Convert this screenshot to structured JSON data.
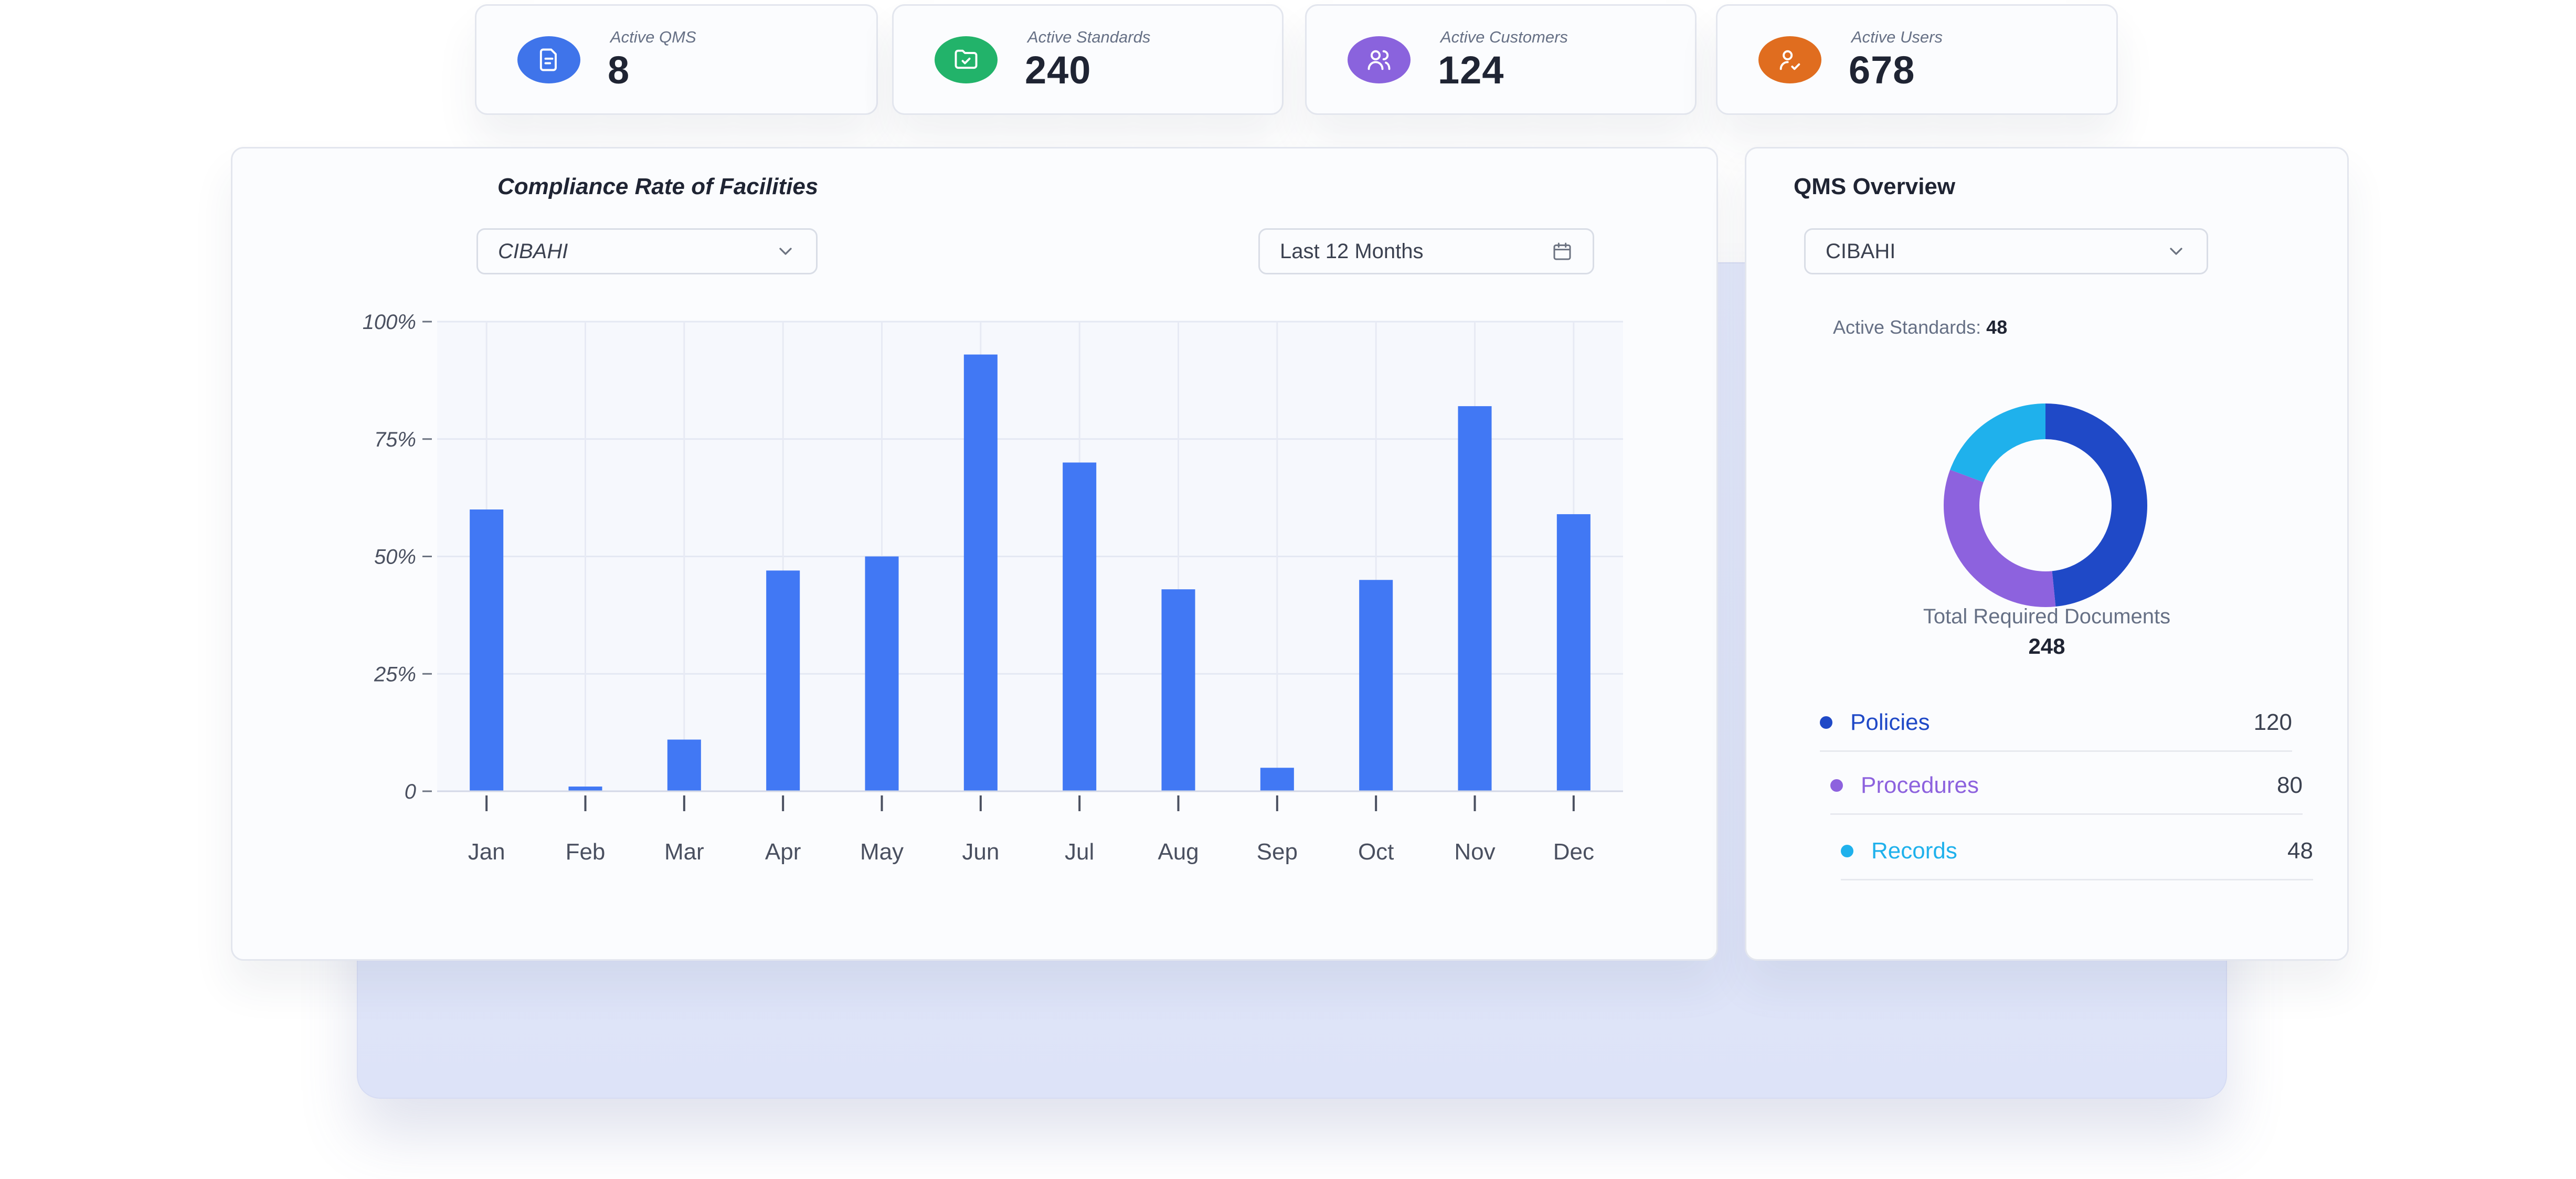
{
  "stats": [
    {
      "label": "Active QMS",
      "value": "8",
      "icon": "document-icon",
      "color": "#3f74ea"
    },
    {
      "label": "Active Standards",
      "value": "240",
      "icon": "folder-check-icon",
      "color": "#22b36a"
    },
    {
      "label": "Active Customers",
      "value": "124",
      "icon": "users-icon",
      "color": "#8a63dd"
    },
    {
      "label": "Active Users",
      "value": "678",
      "icon": "user-check-icon",
      "color": "#e06d1f"
    }
  ],
  "compliance": {
    "title": "Compliance Rate of Facilities",
    "facility_select": "CIBAHI",
    "period_select": "Last 12 Months"
  },
  "chart_data": {
    "type": "bar",
    "title": "Compliance Rate of Facilities",
    "categories": [
      "Jan",
      "Feb",
      "Mar",
      "Apr",
      "May",
      "Jun",
      "Jul",
      "Aug",
      "Sep",
      "Oct",
      "Nov",
      "Dec"
    ],
    "values": [
      60,
      1,
      11,
      47,
      50,
      93,
      70,
      43,
      5,
      45,
      82,
      59
    ],
    "yticks": [
      "0",
      "25%",
      "50%",
      "75%",
      "100%"
    ],
    "ylim": [
      0,
      100
    ],
    "grid": true,
    "bar_color": "#4178f4"
  },
  "qms": {
    "title": "QMS Overview",
    "facility_select": "CIBAHI",
    "active_standards_label": "Active Standards:",
    "active_standards_value": "48",
    "total_label": "Total Required Documents",
    "total_value": "248",
    "legend": [
      {
        "label": "Policies",
        "value": "120",
        "color": "#1f49c7"
      },
      {
        "label": "Procedures",
        "value": "80",
        "color": "#8d62de"
      },
      {
        "label": "Records",
        "value": "48",
        "color": "#1fb1ec"
      }
    ]
  }
}
